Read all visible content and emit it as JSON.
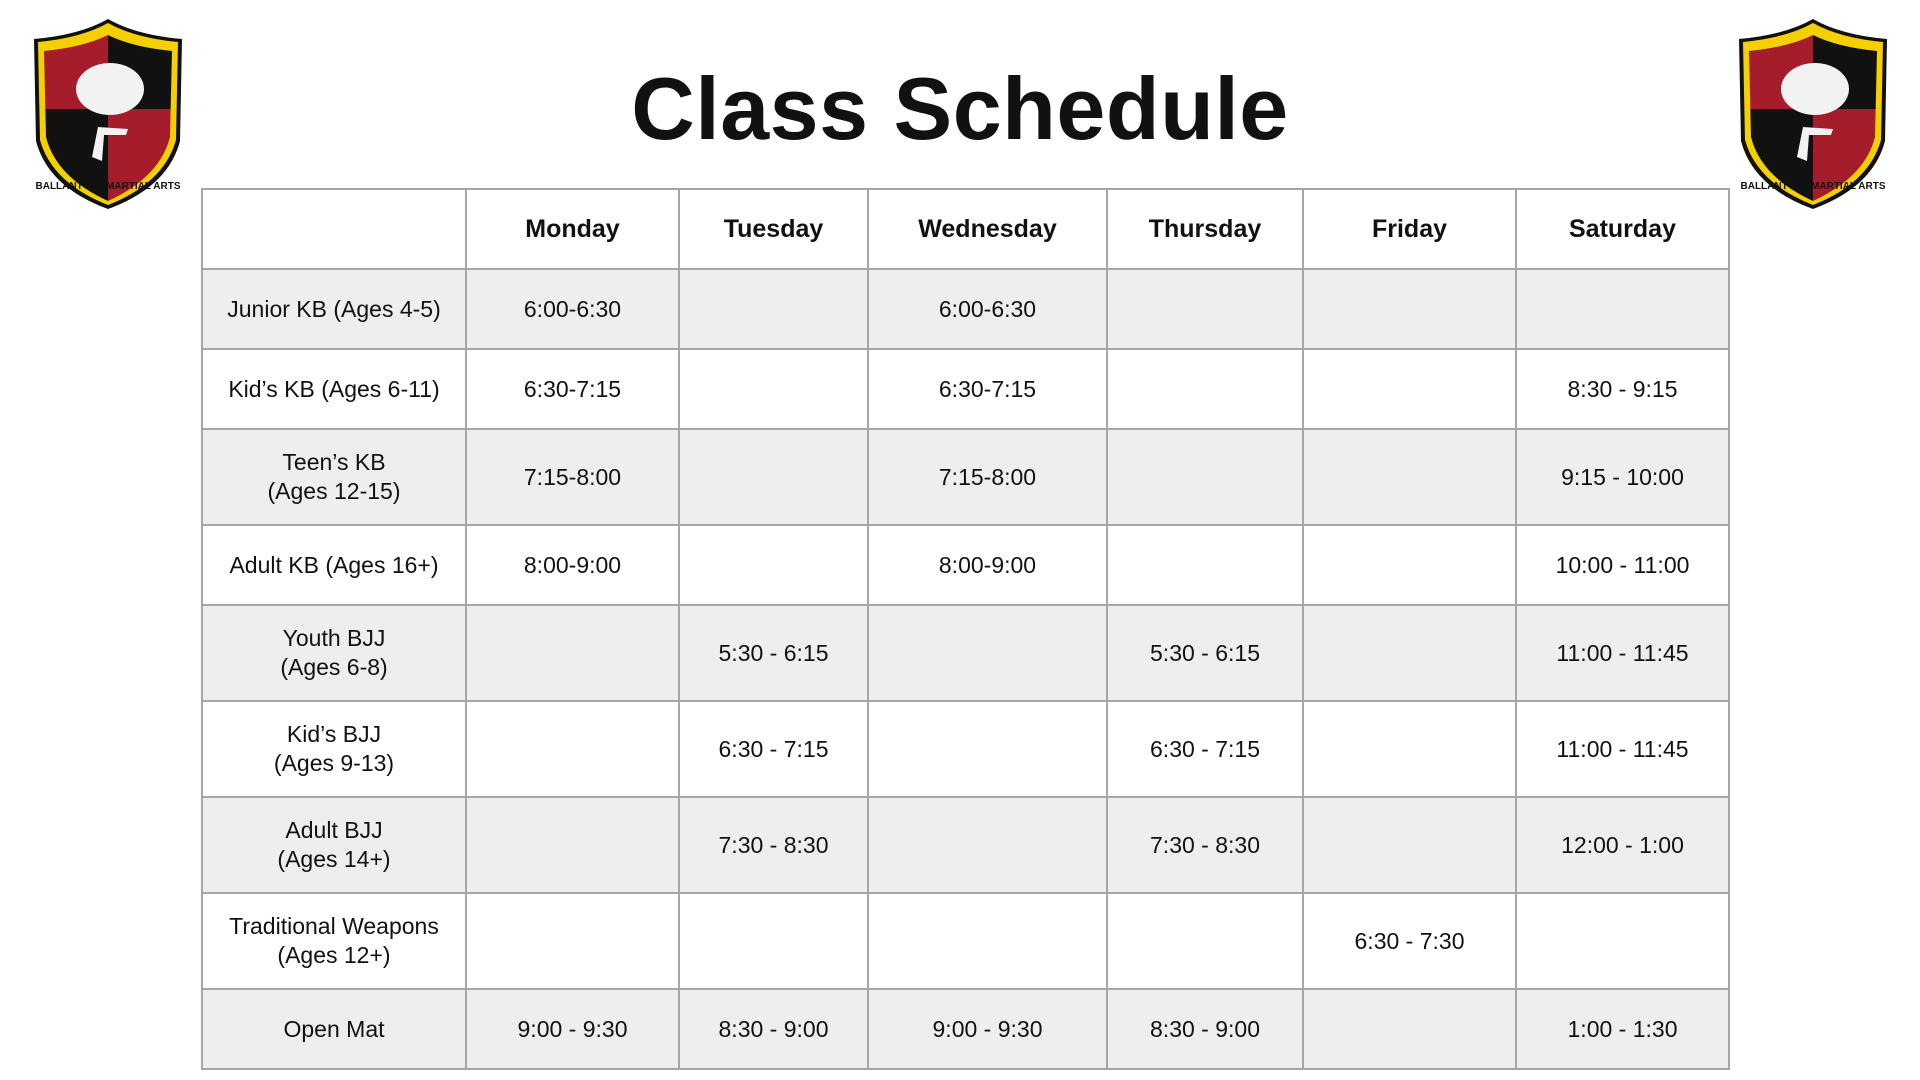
{
  "title": "Class Schedule",
  "logo": {
    "text": "BALLANTYNE MARTIAL ARTS",
    "colors": {
      "red": "#a51c2a",
      "black": "#111111",
      "yellow": "#f5d000"
    }
  },
  "table": {
    "columns": [
      "",
      "Monday",
      "Tuesday",
      "Wednesday",
      "Thursday",
      "Friday",
      "Saturday"
    ],
    "rows": [
      {
        "label": [
          "Junior KB (Ages 4-5)"
        ],
        "cells": [
          "6:00-6:30",
          "",
          "6:00-6:30",
          "",
          "",
          ""
        ]
      },
      {
        "label": [
          "Kid’s KB (Ages 6-11)"
        ],
        "cells": [
          "6:30-7:15",
          "",
          "6:30-7:15",
          "",
          "",
          "8:30 - 9:15"
        ]
      },
      {
        "label": [
          "Teen’s KB",
          "(Ages 12-15)"
        ],
        "cells": [
          "7:15-8:00",
          "",
          "7:15-8:00",
          "",
          "",
          "9:15 - 10:00"
        ]
      },
      {
        "label": [
          "Adult KB (Ages 16+)"
        ],
        "cells": [
          "8:00-9:00",
          "",
          "8:00-9:00",
          "",
          "",
          "10:00 - 11:00"
        ]
      },
      {
        "label": [
          "Youth BJJ",
          "(Ages 6-8)"
        ],
        "cells": [
          "",
          "5:30 - 6:15",
          "",
          "5:30 - 6:15",
          "",
          "11:00 - 11:45"
        ]
      },
      {
        "label": [
          "Kid’s BJJ",
          "(Ages 9-13)"
        ],
        "cells": [
          "",
          "6:30 - 7:15",
          "",
          "6:30 - 7:15",
          "",
          "11:00 - 11:45"
        ]
      },
      {
        "label": [
          "Adult BJJ",
          "(Ages 14+)"
        ],
        "cells": [
          "",
          "7:30 - 8:30",
          "",
          "7:30 - 8:30",
          "",
          "12:00 - 1:00"
        ]
      },
      {
        "label": [
          "Traditional Weapons",
          "(Ages 12+)"
        ],
        "cells": [
          "",
          "",
          "",
          "",
          "6:30 - 7:30",
          ""
        ]
      },
      {
        "label": [
          "Open Mat"
        ],
        "cells": [
          "9:00 - 9:30",
          "8:30 - 9:00",
          "9:00 - 9:30",
          "8:30 - 9:00",
          "",
          "1:00 - 1:30"
        ]
      }
    ]
  }
}
